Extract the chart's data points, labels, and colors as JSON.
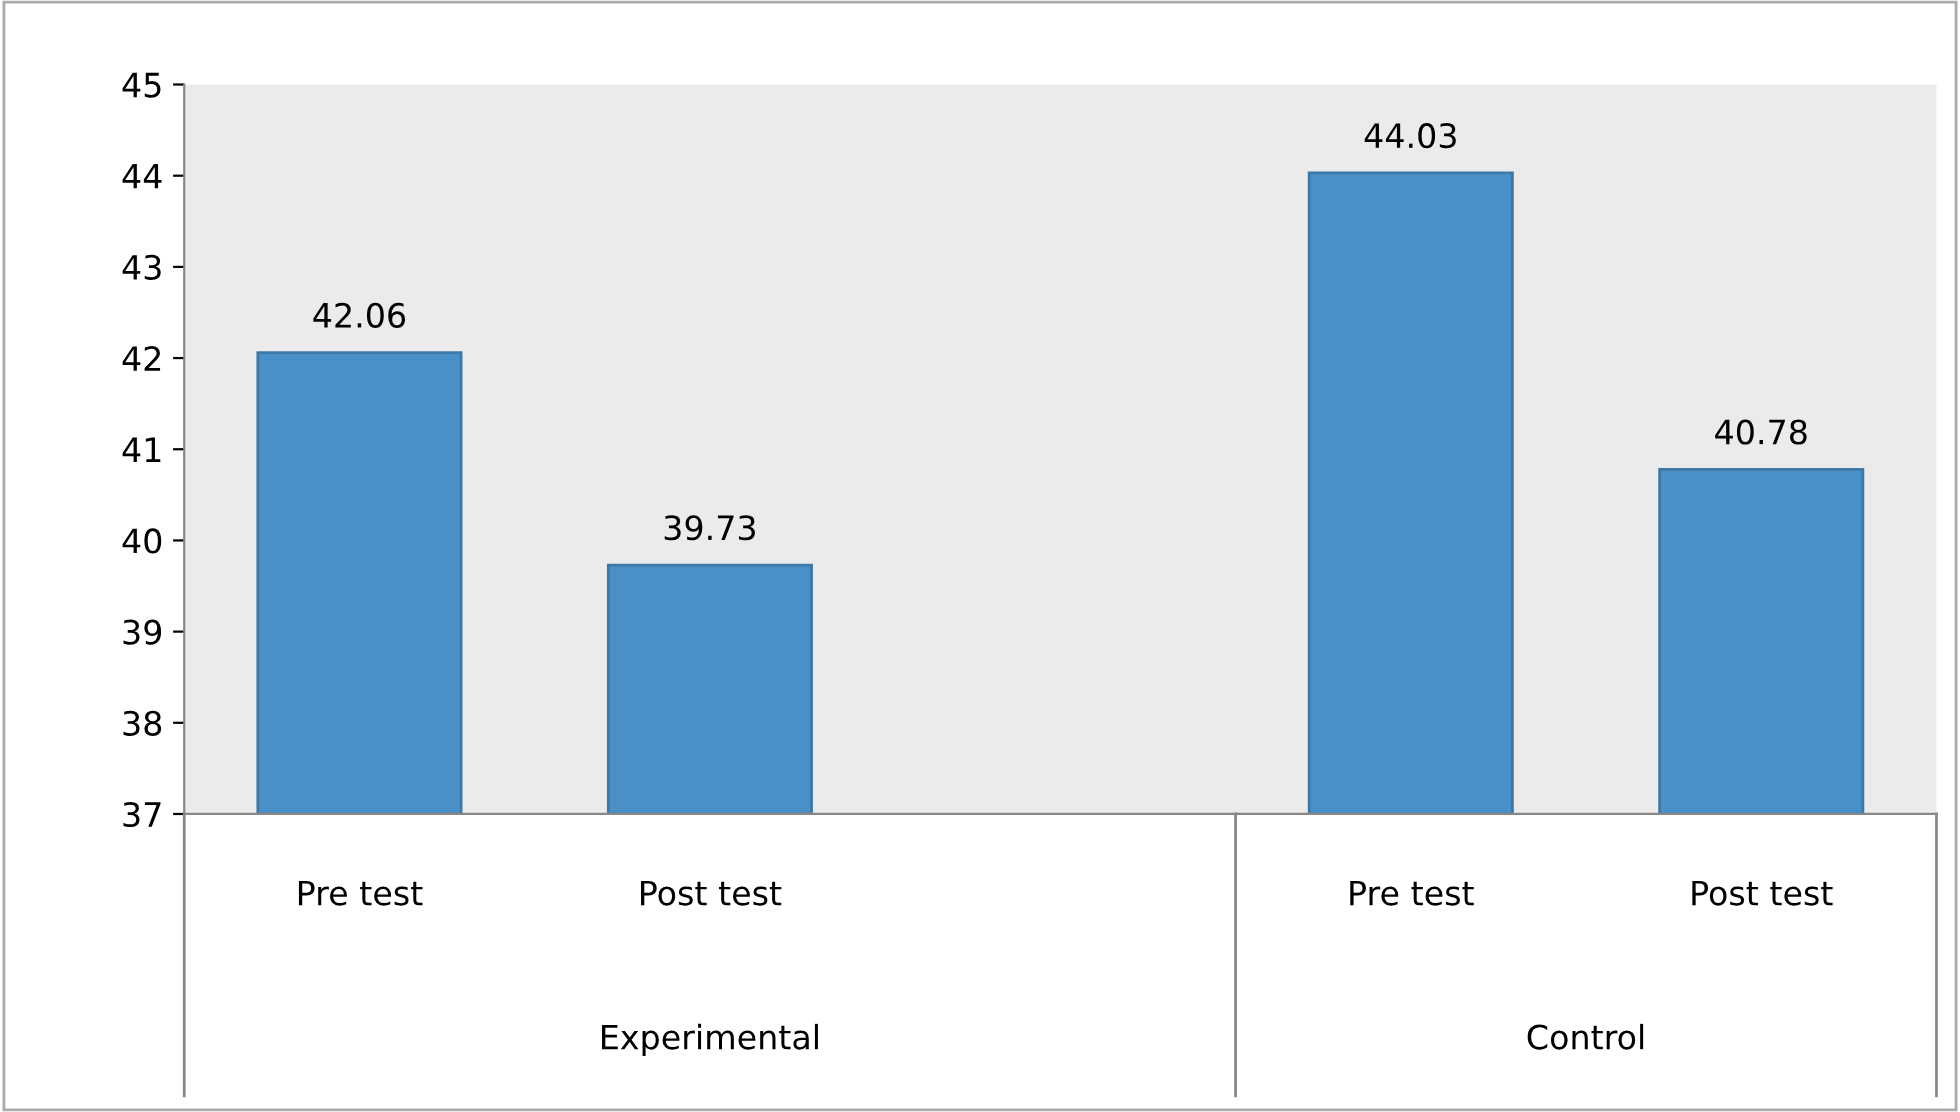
{
  "chart_data": {
    "type": "bar",
    "categories": [
      "Pre test",
      "Post test",
      null,
      "Pre test",
      "Post test"
    ],
    "values": [
      42.06,
      39.73,
      null,
      44.03,
      40.78
    ],
    "color": "#4a90c8",
    "ylim": [
      37,
      45
    ],
    "yticks": [
      37,
      38,
      39,
      40,
      41,
      42,
      43,
      44,
      45
    ],
    "data_labels": true,
    "grid": false,
    "legend": false,
    "annotations": [
      "Experimental",
      "Control"
    ]
  }
}
